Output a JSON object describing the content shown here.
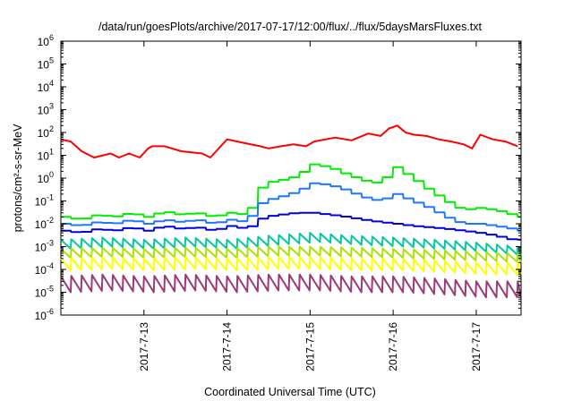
{
  "chart_data": {
    "type": "line",
    "title": "/data/run/goesPlots/archive/2017-07-17/12:00/flux/../flux/5daysMarsFluxes.txt",
    "xlabel": "Coordinated Universal Time (UTC)",
    "ylabel": "protons/cm²-s-sr-MeV",
    "yscale": "log",
    "ylim": [
      1e-06,
      1000000.0
    ],
    "xlim": [
      "2017-07-12 00:00",
      "2017-07-17 13:00"
    ],
    "x_ticks": [
      "2017-7-13",
      "2017-7-14",
      "2017-7-15",
      "2017-7-16",
      "2017-7-17"
    ],
    "y_ticks": [
      {
        "base": "10",
        "exp": "6"
      },
      {
        "base": "10",
        "exp": "5"
      },
      {
        "base": "10",
        "exp": "4"
      },
      {
        "base": "10",
        "exp": "3"
      },
      {
        "base": "10",
        "exp": "2"
      },
      {
        "base": "10",
        "exp": "1"
      },
      {
        "base": "10",
        "exp": "0"
      },
      {
        "base": "10",
        "exp": "-1"
      },
      {
        "base": "10",
        "exp": "-2"
      },
      {
        "base": "10",
        "exp": "-3"
      },
      {
        "base": "10",
        "exp": "-4"
      },
      {
        "base": "10",
        "exp": "-5"
      },
      {
        "base": "10",
        "exp": "-6"
      }
    ],
    "grid": false,
    "legend": "none",
    "x_days_note": "",
    "series": [
      {
        "color": "#ff0000",
        "x": [
          0,
          0.12,
          0.25,
          0.4,
          0.6,
          0.7,
          0.82,
          0.95,
          1.05,
          1.1,
          1.25,
          1.45,
          1.7,
          1.8,
          2,
          2.2,
          2.4,
          2.5,
          2.65,
          2.8,
          2.95,
          3.05,
          3.3,
          3.5,
          3.7,
          3.85,
          3.95,
          4.05,
          4.15,
          4.25,
          4.4,
          4.55,
          4.7,
          4.85,
          4.95,
          5.05,
          5.2,
          5.35,
          5.5
        ],
        "y": [
          50,
          40,
          15,
          8,
          12,
          8,
          12,
          8,
          20,
          25,
          25,
          15,
          12,
          8,
          50,
          35,
          25,
          20,
          25,
          30,
          25,
          40,
          60,
          45,
          90,
          70,
          150,
          200,
          100,
          80,
          70,
          50,
          40,
          30,
          20,
          80,
          50,
          40,
          25
        ]
      },
      {
        "color": "#00ee00",
        "x": [
          0,
          0.2,
          0.4,
          0.6,
          0.8,
          1,
          1.2,
          1.4,
          1.6,
          1.8,
          2,
          2.2,
          2.3,
          2.4,
          2.6,
          2.8,
          3,
          3.2,
          3.4,
          3.6,
          3.8,
          4,
          4.2,
          4.4,
          4.6,
          4.8,
          5,
          5.2,
          5.4,
          5.5
        ],
        "y": [
          0.02,
          0.015,
          0.025,
          0.02,
          0.03,
          0.02,
          0.035,
          0.025,
          0.03,
          0.02,
          0.03,
          0.025,
          0.1,
          0.6,
          0.8,
          1.2,
          4,
          3,
          1.5,
          0.8,
          0.6,
          3,
          1,
          0.3,
          0.1,
          0.04,
          0.05,
          0.04,
          0.025,
          0.02
        ]
      },
      {
        "color": "#1e78ff",
        "x": [
          0,
          0.2,
          0.4,
          0.6,
          0.8,
          1,
          1.2,
          1.4,
          1.6,
          1.8,
          2,
          2.2,
          2.3,
          2.4,
          2.6,
          2.8,
          3,
          3.2,
          3.4,
          3.6,
          3.8,
          4,
          4.2,
          4.4,
          4.6,
          4.8,
          5,
          5.2,
          5.4,
          5.5
        ],
        "y": [
          0.01,
          0.008,
          0.012,
          0.01,
          0.015,
          0.01,
          0.015,
          0.012,
          0.015,
          0.01,
          0.015,
          0.012,
          0.04,
          0.1,
          0.15,
          0.25,
          0.6,
          0.5,
          0.3,
          0.15,
          0.1,
          0.2,
          0.1,
          0.05,
          0.02,
          0.01,
          0.01,
          0.008,
          0.006,
          0.005
        ]
      },
      {
        "color": "#0000dd",
        "x": [
          0,
          0.2,
          0.4,
          0.6,
          0.8,
          1,
          1.2,
          1.4,
          1.6,
          1.8,
          2,
          2.2,
          2.3,
          2.4,
          2.6,
          2.8,
          3,
          3.2,
          3.4,
          3.6,
          3.8,
          4,
          4.2,
          4.4,
          4.6,
          4.8,
          5,
          5.2,
          5.4,
          5.5
        ],
        "y": [
          0.005,
          0.004,
          0.006,
          0.005,
          0.007,
          0.005,
          0.008,
          0.006,
          0.007,
          0.005,
          0.008,
          0.006,
          0.01,
          0.02,
          0.025,
          0.03,
          0.03,
          0.025,
          0.02,
          0.015,
          0.012,
          0.01,
          0.008,
          0.007,
          0.006,
          0.005,
          0.004,
          0.003,
          0.002,
          0.002
        ]
      },
      {
        "color": "#00c8a0",
        "x": [
          0,
          0.5,
          1,
          1.5,
          2,
          2.5,
          3,
          3.5,
          4,
          4.5,
          5,
          5.5
        ],
        "y": [
          0.002,
          0.0025,
          0.002,
          0.0025,
          0.002,
          0.003,
          0.004,
          0.003,
          0.0025,
          0.002,
          0.0015,
          0.001
        ]
      },
      {
        "color": "#aee000",
        "x": [
          0,
          0.5,
          1,
          1.5,
          2,
          2.5,
          3,
          3.5,
          4,
          4.5,
          5,
          5.5
        ],
        "y": [
          0.0008,
          0.0009,
          0.0008,
          0.0009,
          0.0008,
          0.001,
          0.001,
          0.0009,
          0.0008,
          0.0007,
          0.0006,
          0.0005
        ]
      },
      {
        "color": "#ffff00",
        "x": [
          0,
          0.5,
          1,
          1.5,
          2,
          2.5,
          3,
          3.5,
          4,
          4.5,
          5,
          5.5
        ],
        "y": [
          0.0003,
          0.00035,
          0.0003,
          0.00035,
          0.0003,
          0.00035,
          0.00035,
          0.0003,
          0.0003,
          0.00025,
          0.0002,
          0.0002
        ]
      },
      {
        "color": "#9b3a78",
        "x": [
          0,
          0.5,
          1,
          1.5,
          2,
          2.5,
          3,
          3.5,
          4,
          4.5,
          5,
          5.5
        ],
        "y": [
          5e-05,
          6e-05,
          5e-05,
          6e-05,
          5e-05,
          6e-05,
          6e-05,
          5e-05,
          5e-05,
          4e-05,
          3e-05,
          3e-05
        ]
      }
    ],
    "oscillation": {
      "period_days": 0.125,
      "low_factors": [
        1,
        1,
        1,
        1,
        0.4,
        0.4,
        0.3,
        0.2
      ]
    }
  }
}
